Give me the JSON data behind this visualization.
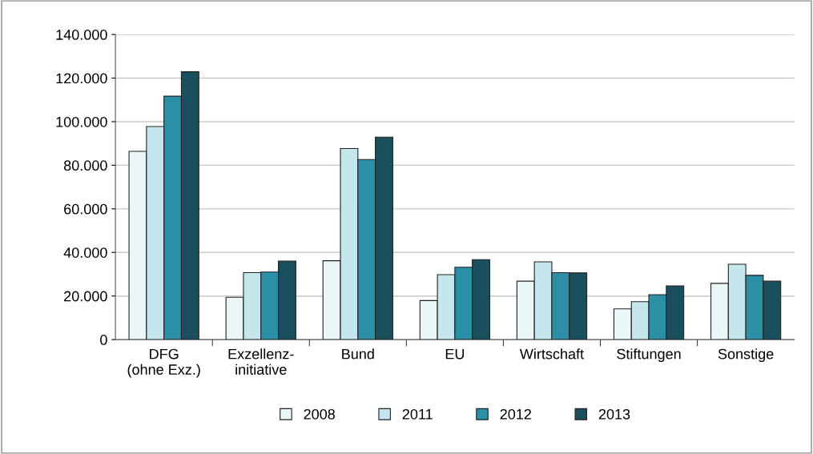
{
  "chart_data": {
    "type": "bar",
    "categories": [
      "DFG\n(ohne Exz.)",
      "Exzellenz-\ninitiative",
      "Bund",
      "EU",
      "Wirtschaft",
      "Stiftungen",
      "Sonstige"
    ],
    "series": [
      {
        "name": "2008",
        "color": "#eaf6f8",
        "values": [
          86400,
          19400,
          36200,
          17900,
          26800,
          14100,
          25800
        ]
      },
      {
        "name": "2011",
        "color": "#c5e6ed",
        "values": [
          97800,
          30700,
          87700,
          29800,
          35700,
          17400,
          34600
        ]
      },
      {
        "name": "2012",
        "color": "#2b8fa6",
        "values": [
          111700,
          31000,
          82600,
          33200,
          30700,
          20600,
          29500
        ]
      },
      {
        "name": "2013",
        "color": "#1a4f5e",
        "values": [
          122900,
          36000,
          92900,
          36700,
          30600,
          24600,
          26800
        ]
      }
    ],
    "ylim": [
      0,
      140000
    ],
    "yticks": [
      0,
      {
        "value": 20000,
        "label": "20.000"
      },
      {
        "value": 40000,
        "label": "40.000"
      },
      {
        "value": 60000,
        "label": "60.000"
      },
      {
        "value": 80000,
        "label": "80.000"
      },
      {
        "value": 100000,
        "label": "100.000"
      },
      {
        "value": 120000,
        "label": "120.000"
      },
      {
        "value": 140000,
        "label": "140.000"
      }
    ],
    "grid": "y",
    "legend": "bottom"
  }
}
